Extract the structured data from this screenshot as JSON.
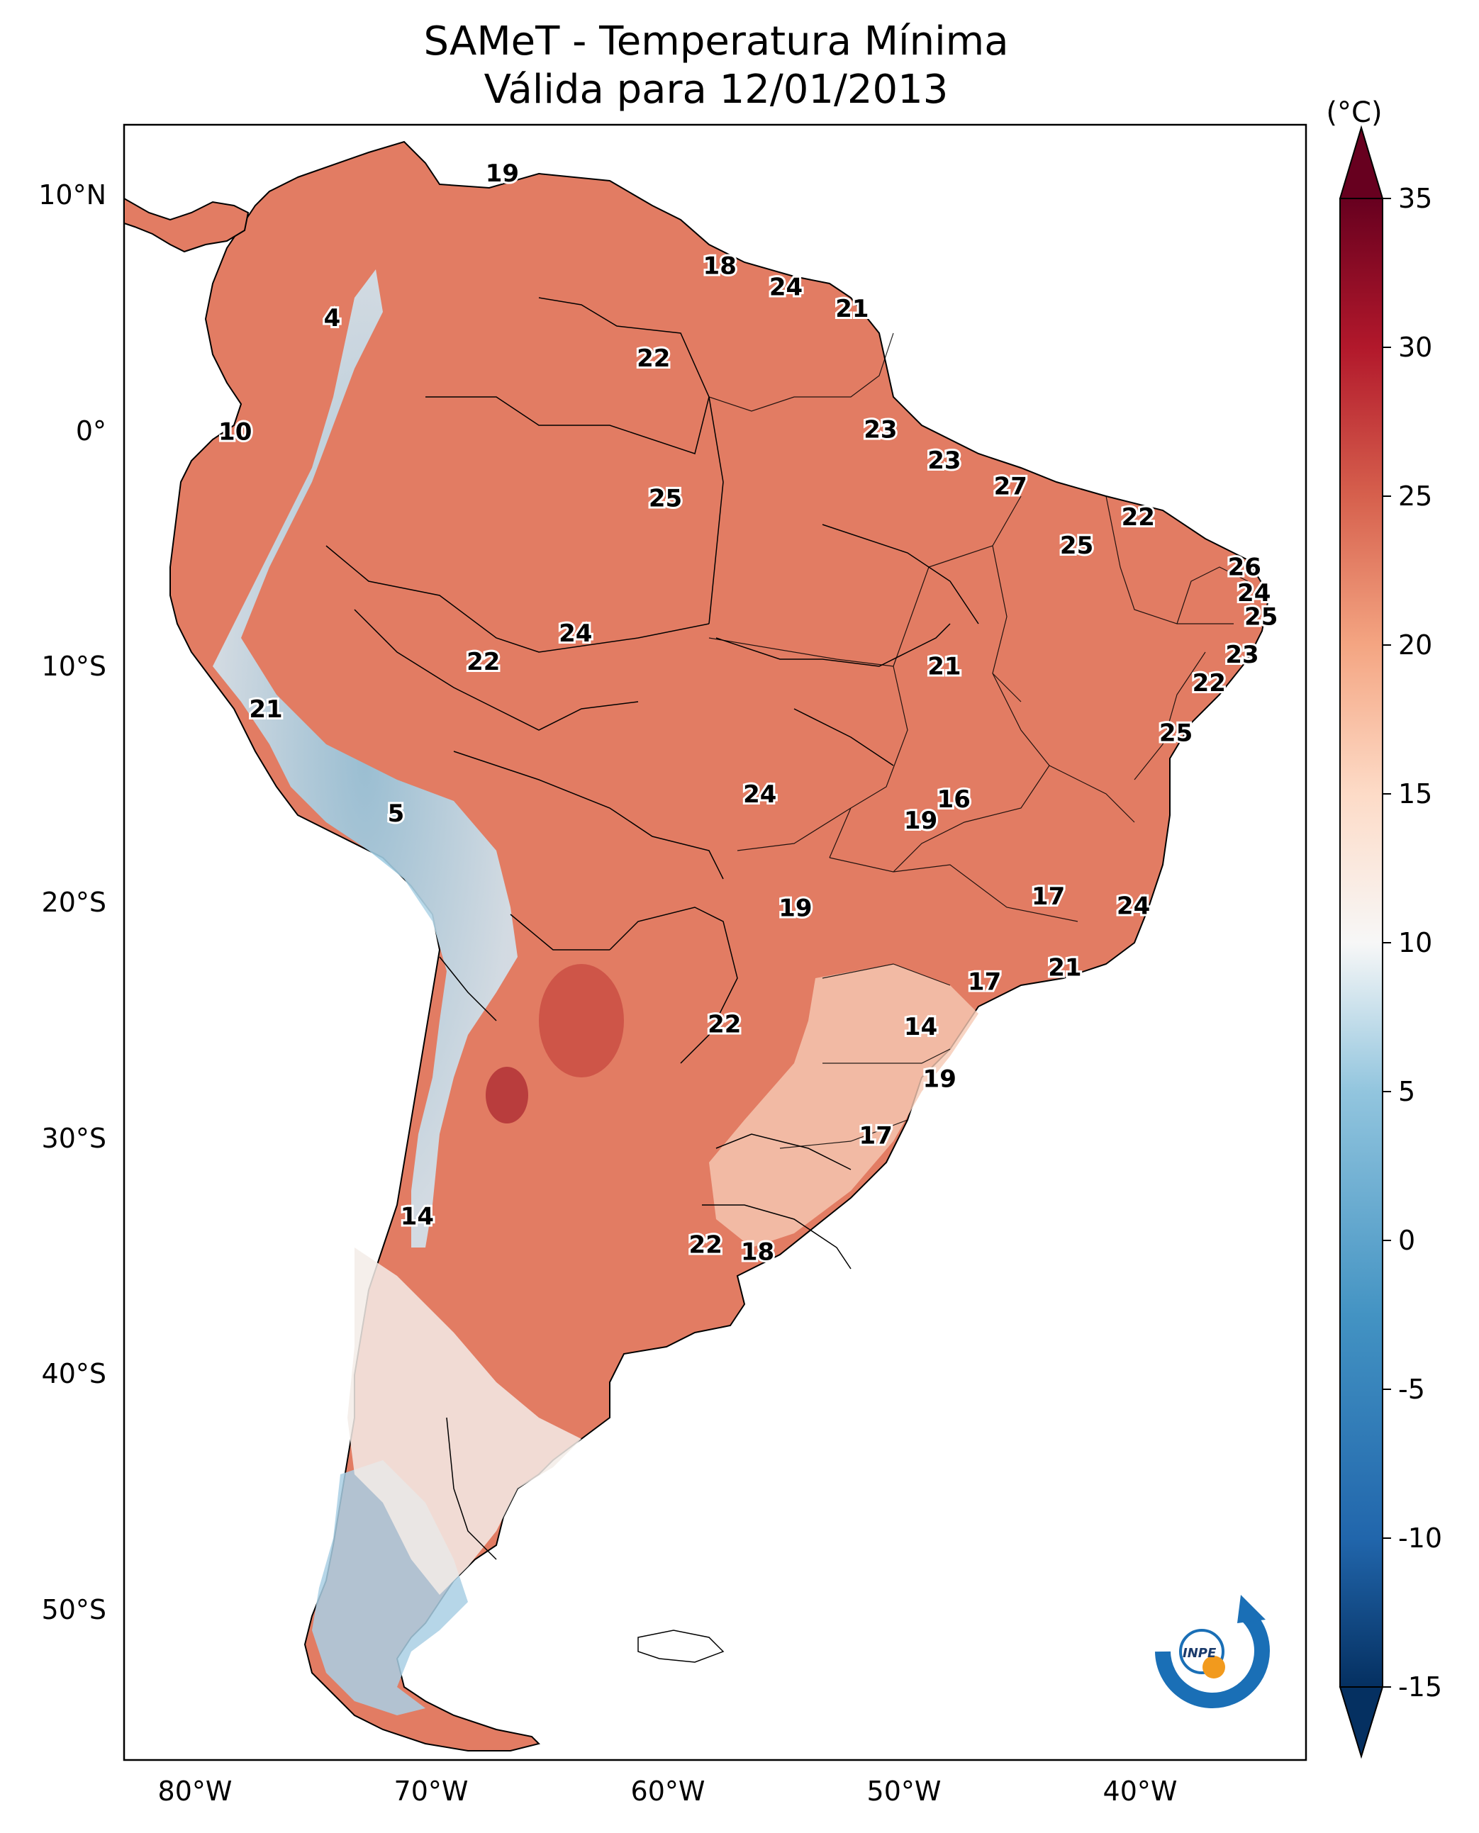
{
  "title": {
    "line1": "SAMeT - Temperatura Mínima",
    "line2": "Válida para 12/01/2013"
  },
  "map": {
    "lon_ticks": [
      "80°W",
      "70°W",
      "60°W",
      "50°W",
      "40°W"
    ],
    "lat_ticks": [
      "10°N",
      "0°",
      "10°S",
      "20°S",
      "30°S",
      "40°S",
      "50°S"
    ],
    "lon_range": [
      -83,
      -33
    ],
    "lat_range": [
      -56,
      13
    ],
    "station_values": [
      {
        "text": "19",
        "lon": -67,
        "lat": 10.6
      },
      {
        "text": "18",
        "lon": -57.8,
        "lat": 6.7
      },
      {
        "text": "24",
        "lon": -55,
        "lat": 5.8
      },
      {
        "text": "21",
        "lon": -52.2,
        "lat": 4.9
      },
      {
        "text": "4",
        "lon": -74.2,
        "lat": 4.5
      },
      {
        "text": "22",
        "lon": -60.6,
        "lat": 2.8
      },
      {
        "text": "10",
        "lon": -78.3,
        "lat": -0.3
      },
      {
        "text": "23",
        "lon": -51,
        "lat": -0.2
      },
      {
        "text": "23",
        "lon": -48.3,
        "lat": -1.5
      },
      {
        "text": "27",
        "lon": -45.5,
        "lat": -2.6
      },
      {
        "text": "25",
        "lon": -60.1,
        "lat": -3.1
      },
      {
        "text": "22",
        "lon": -40.1,
        "lat": -3.9
      },
      {
        "text": "25",
        "lon": -42.7,
        "lat": -5.1
      },
      {
        "text": "26",
        "lon": -35.6,
        "lat": -6
      },
      {
        "text": "24",
        "lon": -35.2,
        "lat": -7.1
      },
      {
        "text": "25",
        "lon": -34.9,
        "lat": -8.1
      },
      {
        "text": "24",
        "lon": -63.9,
        "lat": -8.8
      },
      {
        "text": "22",
        "lon": -67.8,
        "lat": -10
      },
      {
        "text": "21",
        "lon": -48.3,
        "lat": -10.2
      },
      {
        "text": "23",
        "lon": -35.7,
        "lat": -9.7
      },
      {
        "text": "22",
        "lon": -37.1,
        "lat": -10.9
      },
      {
        "text": "21",
        "lon": -77,
        "lat": -12
      },
      {
        "text": "25",
        "lon": -38.5,
        "lat": -13
      },
      {
        "text": "16",
        "lon": -47.9,
        "lat": -15.8
      },
      {
        "text": "24",
        "lon": -56.1,
        "lat": -15.6
      },
      {
        "text": "5",
        "lon": -71.5,
        "lat": -16.4
      },
      {
        "text": "19",
        "lon": -49.3,
        "lat": -16.7
      },
      {
        "text": "17",
        "lon": -43.9,
        "lat": -19.9
      },
      {
        "text": "24",
        "lon": -40.3,
        "lat": -20.3
      },
      {
        "text": "19",
        "lon": -54.6,
        "lat": -20.4
      },
      {
        "text": "21",
        "lon": -43.2,
        "lat": -22.9
      },
      {
        "text": "17",
        "lon": -46.6,
        "lat": -23.5
      },
      {
        "text": "22",
        "lon": -57.6,
        "lat": -25.3
      },
      {
        "text": "14",
        "lon": -49.3,
        "lat": -25.4
      },
      {
        "text": "19",
        "lon": -48.5,
        "lat": -27.6
      },
      {
        "text": "17",
        "lon": -51.2,
        "lat": -30
      },
      {
        "text": "14",
        "lon": -70.6,
        "lat": -33.4
      },
      {
        "text": "22",
        "lon": -58.4,
        "lat": -34.6
      },
      {
        "text": "18",
        "lon": -56.2,
        "lat": -34.9
      }
    ]
  },
  "colorbar": {
    "unit": "(°C)",
    "ticks": [
      "35",
      "30",
      "25",
      "20",
      "15",
      "10",
      "5",
      "0",
      "-5",
      "-10",
      "-15"
    ],
    "min": -15,
    "max": 35
  },
  "logo": {
    "text": "INPE",
    "colors": {
      "ring": "#1a6fb6",
      "dot": "#f29a1d"
    }
  },
  "colors": {
    "warm_high": "#b2182b",
    "warm": "#e0775e",
    "mid": "#f7f7f7",
    "cool": "#92c5de",
    "cold": "#2166ac"
  }
}
